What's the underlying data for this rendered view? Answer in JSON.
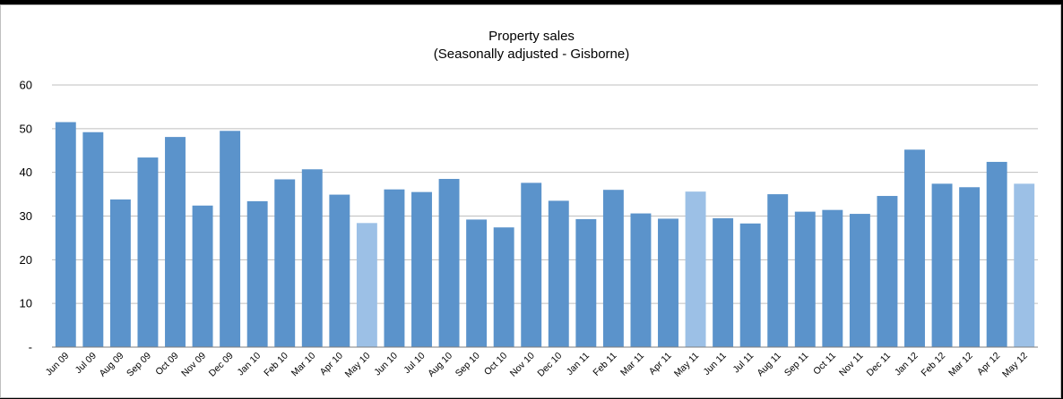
{
  "chart_data": {
    "type": "bar",
    "title": "Property sales",
    "subtitle": "(Seasonally adjusted - Gisborne)",
    "xlabel": "",
    "ylabel": "",
    "ylim": [
      0,
      60
    ],
    "yticks": [
      0,
      10,
      20,
      30,
      40,
      50,
      60
    ],
    "ytick_labels": [
      "-",
      "10",
      "20",
      "30",
      "40",
      "50",
      "60"
    ],
    "grid": true,
    "legend": "none",
    "colors": {
      "bar": "#5b93cb",
      "highlight": "#9cc0e6",
      "grid": "#bfbfbf",
      "axis": "#7f7f7f"
    },
    "categories": [
      "Jun 09",
      "Jul 09",
      "Aug 09",
      "Sep 09",
      "Oct 09",
      "Nov 09",
      "Dec 09",
      "Jan 10",
      "Feb 10",
      "Mar 10",
      "Apr 10",
      "May 10",
      "Jun 10",
      "Jul 10",
      "Aug 10",
      "Sep 10",
      "Oct 10",
      "Nov 10",
      "Dec 10",
      "Jan 11",
      "Feb 11",
      "Mar 11",
      "Apr 11",
      "May 11",
      "Jun 11",
      "Jul 11",
      "Aug 11",
      "Sep 11",
      "Oct 11",
      "Nov 11",
      "Dec 11",
      "Jan 12",
      "Feb 12",
      "Mar 12",
      "Apr 12",
      "May 12"
    ],
    "values": [
      51.5,
      49.2,
      33.8,
      43.4,
      48.1,
      32.4,
      49.5,
      33.4,
      38.4,
      40.7,
      34.9,
      28.4,
      36.1,
      35.5,
      38.5,
      29.2,
      27.4,
      37.6,
      33.5,
      29.3,
      36.0,
      30.6,
      29.4,
      35.6,
      29.5,
      28.3,
      35.0,
      31.0,
      31.4,
      30.5,
      34.6,
      45.2,
      37.4,
      36.6,
      42.4,
      37.4
    ],
    "highlighted": [
      false,
      false,
      false,
      false,
      false,
      false,
      false,
      false,
      false,
      false,
      false,
      true,
      false,
      false,
      false,
      false,
      false,
      false,
      false,
      false,
      false,
      false,
      false,
      true,
      false,
      false,
      false,
      false,
      false,
      false,
      false,
      false,
      false,
      false,
      false,
      true
    ]
  }
}
